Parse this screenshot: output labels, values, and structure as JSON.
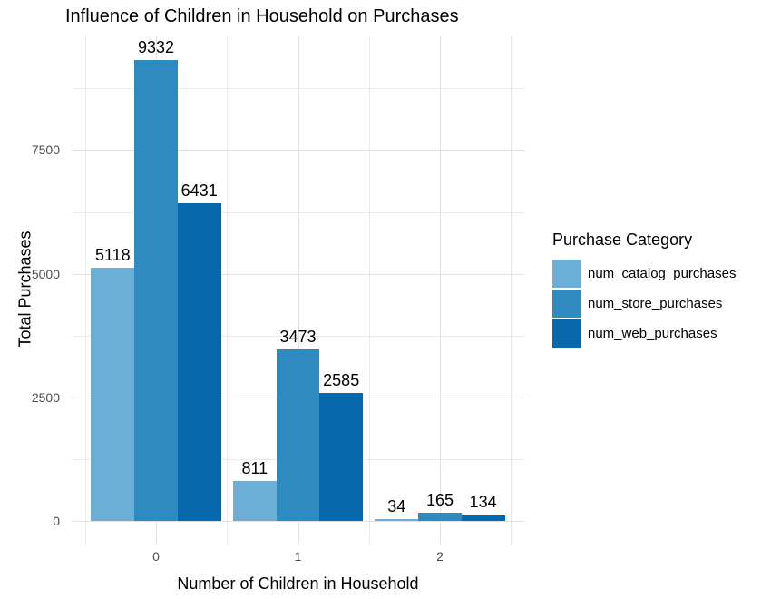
{
  "title": "Influence of Children in Household on Purchases",
  "chart_data": {
    "type": "bar",
    "title": "Influence of Children in Household on Purchases",
    "xlabel": "Number of Children in Household",
    "ylabel": "Total Purchases",
    "categories": [
      "0",
      "1",
      "2"
    ],
    "series": [
      {
        "name": "num_catalog_purchases",
        "color": "#6BAED6",
        "values": [
          5118,
          811,
          34
        ]
      },
      {
        "name": "num_store_purchases",
        "color": "#2E8BC0",
        "values": [
          9332,
          3473,
          165
        ]
      },
      {
        "name": "num_web_purchases",
        "color": "#0868AC",
        "values": [
          6431,
          2585,
          134
        ]
      }
    ],
    "bar_labels": [
      [
        5118,
        811,
        34
      ],
      [
        9332,
        3473,
        165
      ],
      [
        6431,
        2585,
        134
      ]
    ],
    "legend_title": "Purchase Category",
    "legend_position": "right",
    "y_ticks": [
      0,
      2500,
      5000,
      7500
    ],
    "y_minor_ticks": [
      1250,
      3750,
      6250,
      8750
    ],
    "x_minor_positions": [
      -0.5,
      0.5,
      1.5,
      2.5
    ],
    "ylim": [
      0,
      9800
    ],
    "grid": "major and minor horizontal and vertical, light gray on white background",
    "style": "ggplot2 theme_minimal, dodged bars, value labels above bars"
  },
  "colors": {
    "background": "#FFFFFF",
    "grid_major": "#E2E2E2",
    "grid_minor": "#EBEBEB",
    "axis_text": "#4D4D4D",
    "text": "#000000"
  }
}
